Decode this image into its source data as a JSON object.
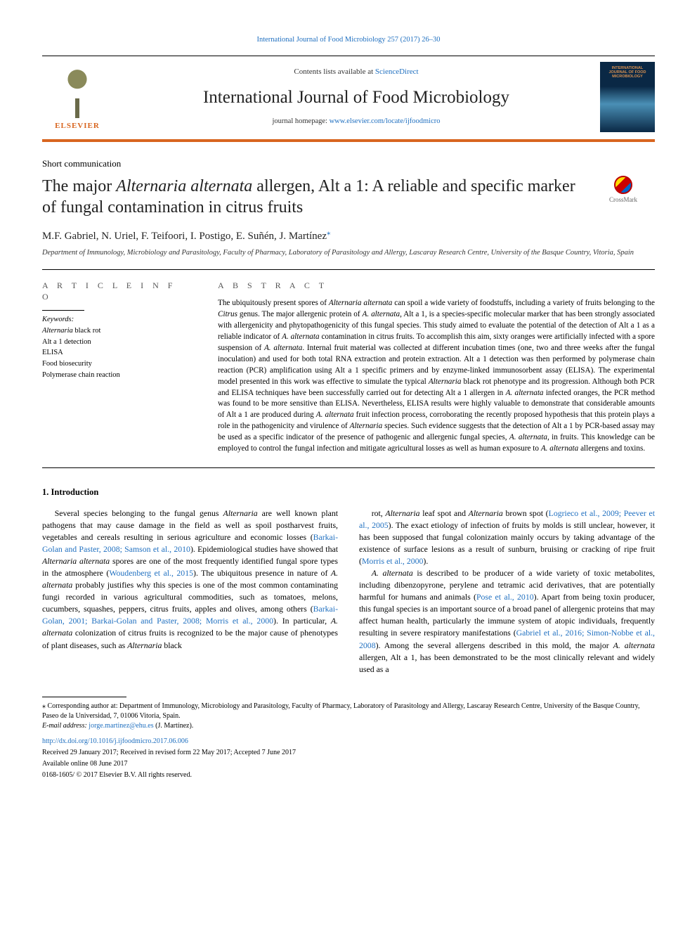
{
  "colors": {
    "link": "#2070c0",
    "accent_rule": "#d8651f",
    "text": "#000000",
    "elsevier": "#d8651f",
    "cover_bg_top": "#0a2845",
    "cover_text": "#d89050"
  },
  "typography": {
    "body_font": "Georgia, 'Times New Roman', serif",
    "running_head_pt": 10.5,
    "journal_name_pt": 25,
    "title_pt": 24,
    "authors_pt": 15,
    "abstract_pt": 11.2,
    "body_pt": 11.8,
    "footnote_pt": 10
  },
  "runningHead": {
    "text": "International Journal of Food Microbiology 257 (2017) 26–30"
  },
  "masthead": {
    "contents_prefix": "Contents lists available at ",
    "contents_link": "ScienceDirect",
    "journal_name": "International Journal of Food Microbiology",
    "homepage_prefix": "journal homepage: ",
    "homepage_url": "www.elsevier.com/locate/ijfoodmicro",
    "elsevier_label": "ELSEVIER",
    "cover_line1": "INTERNATIONAL",
    "cover_line2": "JOURNAL OF FOOD",
    "cover_line3": "MICROBIOLOGY"
  },
  "article": {
    "type": "Short communication",
    "title_part1": "The major ",
    "title_ital1": "Alternaria alternata",
    "title_part2": " allergen, Alt a 1: A reliable and specific marker of fungal contamination in citrus fruits",
    "crossmark_label": "CrossMark",
    "authors": "M.F. Gabriel, N. Uriel, F. Teifoori, I. Postigo, E. Suñén, J. Martínez",
    "corr_mark": "⁎",
    "affiliation": "Department of Immunology, Microbiology and Parasitology, Faculty of Pharmacy, Laboratory of Parasitology and Allergy, Lascaray Research Centre, University of the Basque Country, Vitoria, Spain"
  },
  "info": {
    "label": "A R T I C L E  I N F O",
    "keywords_label": "Keywords:",
    "keywords": [
      {
        "t": "Alternaria",
        "i": true
      },
      {
        "t": " black rot"
      },
      {
        "br": true
      },
      {
        "t": "Alt a 1 detection"
      },
      {
        "br": true
      },
      {
        "t": "ELISA"
      },
      {
        "br": true
      },
      {
        "t": "Food biosecurity"
      },
      {
        "br": true
      },
      {
        "t": "Polymerase chain reaction"
      }
    ]
  },
  "abstract": {
    "label": "A B S T R A C T",
    "text_runs": [
      {
        "t": "The ubiquitously present spores of "
      },
      {
        "t": "Alternaria alternata",
        "i": true
      },
      {
        "t": " can spoil a wide variety of foodstuffs, including a variety of fruits belonging to the "
      },
      {
        "t": "Citrus",
        "i": true
      },
      {
        "t": " genus. The major allergenic protein of "
      },
      {
        "t": "A. alternata",
        "i": true
      },
      {
        "t": ", Alt a 1, is a species-specific molecular marker that has been strongly associated with allergenicity and phytopathogenicity of this fungal species. This study aimed to evaluate the potential of the detection of Alt a 1 as a reliable indicator of "
      },
      {
        "t": "A. alternata",
        "i": true
      },
      {
        "t": " contamination in citrus fruits. To accomplish this aim, sixty oranges were artificially infected with a spore suspension of "
      },
      {
        "t": "A. alternata",
        "i": true
      },
      {
        "t": ". Internal fruit material was collected at different incubation times (one, two and three weeks after the fungal inoculation) and used for both total RNA extraction and protein extraction. Alt a 1 detection was then performed by polymerase chain reaction (PCR) amplification using Alt a 1 specific primers and by enzyme-linked immunosorbent assay (ELISA). The experimental model presented in this work was effective to simulate the typical "
      },
      {
        "t": "Alternaria",
        "i": true
      },
      {
        "t": " black rot phenotype and its progression. Although both PCR and ELISA techniques have been successfully carried out for detecting Alt a 1 allergen in "
      },
      {
        "t": "A. alternata",
        "i": true
      },
      {
        "t": " infected oranges, the PCR method was found to be more sensitive than ELISA. Nevertheless, ELISA results were highly valuable to demonstrate that considerable amounts of Alt a 1 are produced during "
      },
      {
        "t": "A. alternata",
        "i": true
      },
      {
        "t": " fruit infection process, corroborating the recently proposed hypothesis that this protein plays a role in the pathogenicity and virulence of "
      },
      {
        "t": "Alternaria",
        "i": true
      },
      {
        "t": " species. Such evidence suggests that the detection of Alt a 1 by PCR-based assay may be used as a specific indicator of the presence of pathogenic and allergenic fungal species, "
      },
      {
        "t": "A. alternata",
        "i": true
      },
      {
        "t": ", in fruits. This knowledge can be employed to control the fungal infection and mitigate agricultural losses as well as human exposure to "
      },
      {
        "t": "A. alternata",
        "i": true
      },
      {
        "t": " allergens and toxins."
      }
    ]
  },
  "body": {
    "section_title": "1. Introduction",
    "col1_runs": [
      {
        "t": "Several species belonging to the fungal genus "
      },
      {
        "t": "Alternaria",
        "i": true
      },
      {
        "t": " are well known plant pathogens that may cause damage in the field as well as spoil postharvest fruits, vegetables and cereals resulting in serious agriculture and economic losses ("
      },
      {
        "t": "Barkai-Golan and Paster, 2008; Samson et al., 2010",
        "l": true
      },
      {
        "t": "). Epidemiological studies have showed that "
      },
      {
        "t": "Alternaria alternata",
        "i": true
      },
      {
        "t": " spores are one of the most frequently identified fungal spore types in the atmosphere ("
      },
      {
        "t": "Woudenberg et al., 2015",
        "l": true
      },
      {
        "t": "). The ubiquitous presence in nature of "
      },
      {
        "t": "A. alternata",
        "i": true
      },
      {
        "t": " probably justifies why this species is one of the most common contaminating fungi recorded in various agricultural commodities, such as tomatoes, melons, cucumbers, squashes, peppers, citrus fruits, apples and olives, among others ("
      },
      {
        "t": "Barkai-Golan, 2001; Barkai-Golan and Paster, 2008; Morris et al., 2000",
        "l": true
      },
      {
        "t": "). In particular, "
      },
      {
        "t": "A. alternata",
        "i": true
      },
      {
        "t": " colonization of citrus fruits is recognized to be the major cause of phenotypes of plant diseases, such as "
      },
      {
        "t": "Alternaria",
        "i": true
      },
      {
        "t": " black"
      }
    ],
    "col2_runs": [
      {
        "t": "rot, "
      },
      {
        "t": "Alternaria",
        "i": true
      },
      {
        "t": " leaf spot and "
      },
      {
        "t": "Alternaria",
        "i": true
      },
      {
        "t": " brown spot ("
      },
      {
        "t": "Logrieco et al., 2009; Peever et al., 2005",
        "l": true
      },
      {
        "t": "). The exact etiology of infection of fruits by molds is still unclear, however, it has been supposed that fungal colonization mainly occurs by taking advantage of the existence of surface lesions as a result of sunburn, bruising or cracking of ripe fruit ("
      },
      {
        "t": "Morris et al., 2000",
        "l": true
      },
      {
        "t": ")."
      },
      {
        "p": true
      },
      {
        "t": "A. alternata",
        "i": true
      },
      {
        "t": " is described to be producer of a wide variety of toxic metabolites, including dibenzopyrone, perylene and tetramic acid derivatives, that are potentially harmful for humans and animals ("
      },
      {
        "t": "Pose et al., 2010",
        "l": true
      },
      {
        "t": "). Apart from being toxin producer, this fungal species is an important source of a broad panel of allergenic proteins that may affect human health, particularly the immune system of atopic individuals, frequently resulting in severe respiratory manifestations ("
      },
      {
        "t": "Gabriel et al., 2016; Simon-Nobbe et al., 2008",
        "l": true
      },
      {
        "t": "). Among the several allergens described in this mold, the major "
      },
      {
        "t": "A. alternata",
        "i": true
      },
      {
        "t": " allergen, Alt a 1, has been demonstrated to be the most clinically relevant and widely used as a"
      }
    ]
  },
  "footnotes": {
    "corr_text": "⁎ Corresponding author at: Department of Immunology, Microbiology and Parasitology, Faculty of Pharmacy, Laboratory of Parasitology and Allergy, Lascaray Research Centre, University of the Basque Country, Paseo de la Universidad, 7, 01006 Vitoria, Spain.",
    "email_label": "E-mail address: ",
    "email": "jorge.martinez@ehu.es",
    "email_owner": " (J. Martínez).",
    "doi": "http://dx.doi.org/10.1016/j.ijfoodmicro.2017.06.006",
    "history1": "Received 29 January 2017; Received in revised form 22 May 2017; Accepted 7 June 2017",
    "history2": "Available online 08 June 2017",
    "copyright": "0168-1605/ © 2017 Elsevier B.V. All rights reserved."
  }
}
